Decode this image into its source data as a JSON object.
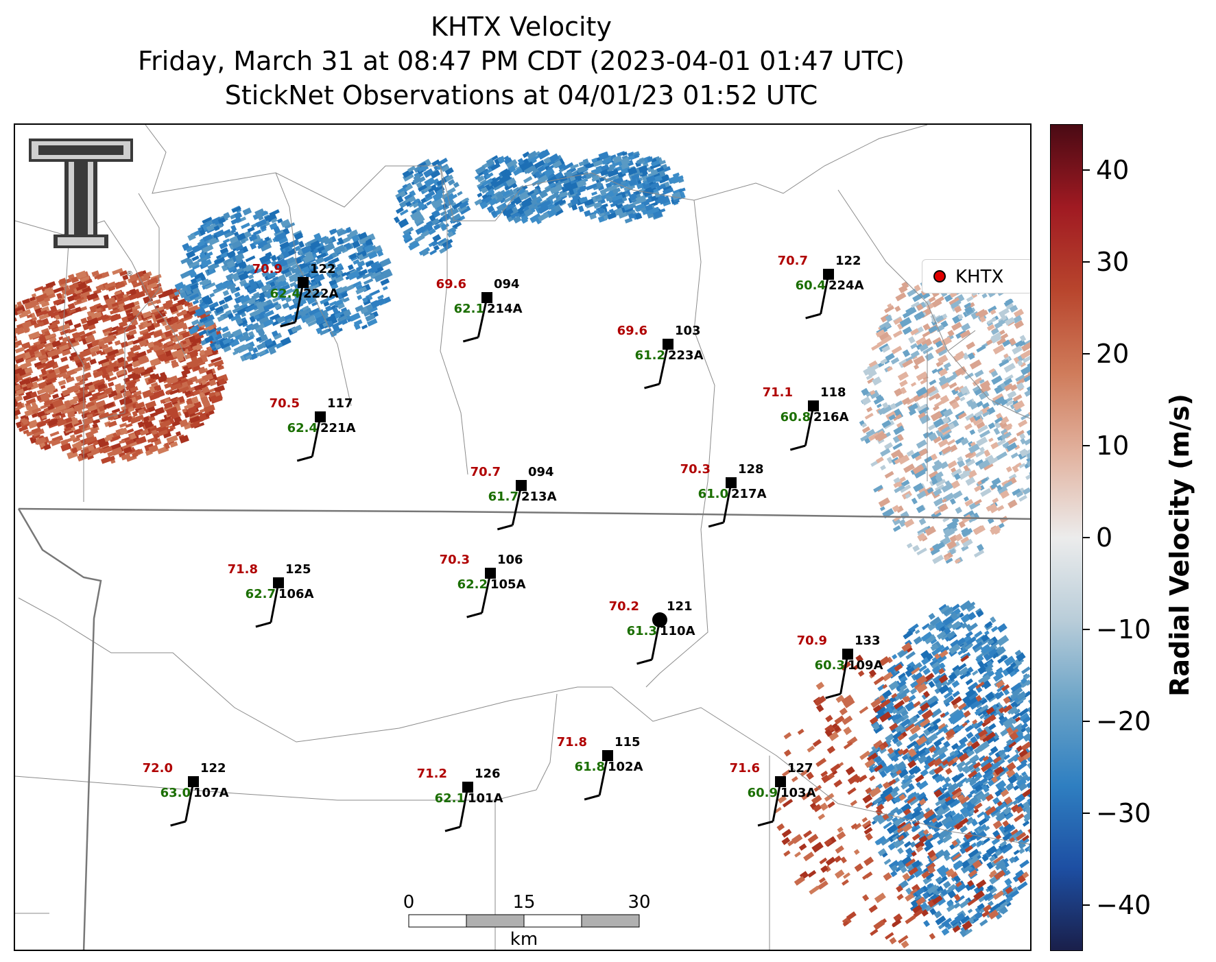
{
  "title": {
    "line1": "KHTX Velocity",
    "line2": "Friday, March 31 at 08:47 PM CDT (2023-04-01 01:47 UTC)",
    "line3": "StickNet Observations at 04/01/23 01:52 UTC"
  },
  "legend": {
    "label": "KHTX",
    "marker_color": "#e00000"
  },
  "colorbar": {
    "title": "Radial Velocity (m/s)",
    "range": [
      -45,
      45
    ],
    "ticks": [
      "40",
      "30",
      "20",
      "10",
      "0",
      "−10",
      "−20",
      "−30",
      "−40"
    ],
    "tick_values": [
      40,
      30,
      20,
      10,
      0,
      -10,
      -20,
      -30,
      -40
    ],
    "colors": [
      "#1a1f4a",
      "#1d4fa3",
      "#2f7fc1",
      "#6aa3c7",
      "#b9cdd9",
      "#ececec",
      "#e2b3a0",
      "#cf7b5a",
      "#b8452d",
      "#a01a22",
      "#4a0a14"
    ]
  },
  "scale_bar": {
    "labels": [
      "0",
      "15",
      "30"
    ],
    "unit": "km"
  },
  "radar_site": {
    "name": "KHTX"
  },
  "stations": [
    {
      "id": "222A",
      "temp": "70.9",
      "dew": "62.4",
      "dir": "122"
    },
    {
      "id": "214A",
      "temp": "69.6",
      "dew": "62.1",
      "dir": "094"
    },
    {
      "id": "223A",
      "temp": "69.6",
      "dew": "61.2",
      "dir": "103"
    },
    {
      "id": "224A",
      "temp": "70.7",
      "dew": "60.4",
      "dir": "122"
    },
    {
      "id": "221A",
      "temp": "70.5",
      "dew": "62.4",
      "dir": "117"
    },
    {
      "id": "216A",
      "temp": "71.1",
      "dew": "60.8",
      "dir": "118"
    },
    {
      "id": "213A",
      "temp": "70.7",
      "dew": "61.7",
      "dir": "094"
    },
    {
      "id": "217A",
      "temp": "70.3",
      "dew": "61.0",
      "dir": "128"
    },
    {
      "id": "106A",
      "temp": "71.8",
      "dew": "62.7",
      "dir": "125"
    },
    {
      "id": "105A",
      "temp": "70.3",
      "dew": "62.2",
      "dir": "106"
    },
    {
      "id": "110A",
      "temp": "70.2",
      "dew": "61.3",
      "dir": "121"
    },
    {
      "id": "109A",
      "temp": "70.9",
      "dew": "60.3",
      "dir": "133"
    },
    {
      "id": "102A",
      "temp": "71.8",
      "dew": "61.8",
      "dir": "115"
    },
    {
      "id": "107A",
      "temp": "72.0",
      "dew": "63.0",
      "dir": "122"
    },
    {
      "id": "101A",
      "temp": "71.2",
      "dew": "62.1",
      "dir": "126"
    },
    {
      "id": "103A",
      "temp": "71.6",
      "dew": "60.9",
      "dir": "127"
    }
  ]
}
